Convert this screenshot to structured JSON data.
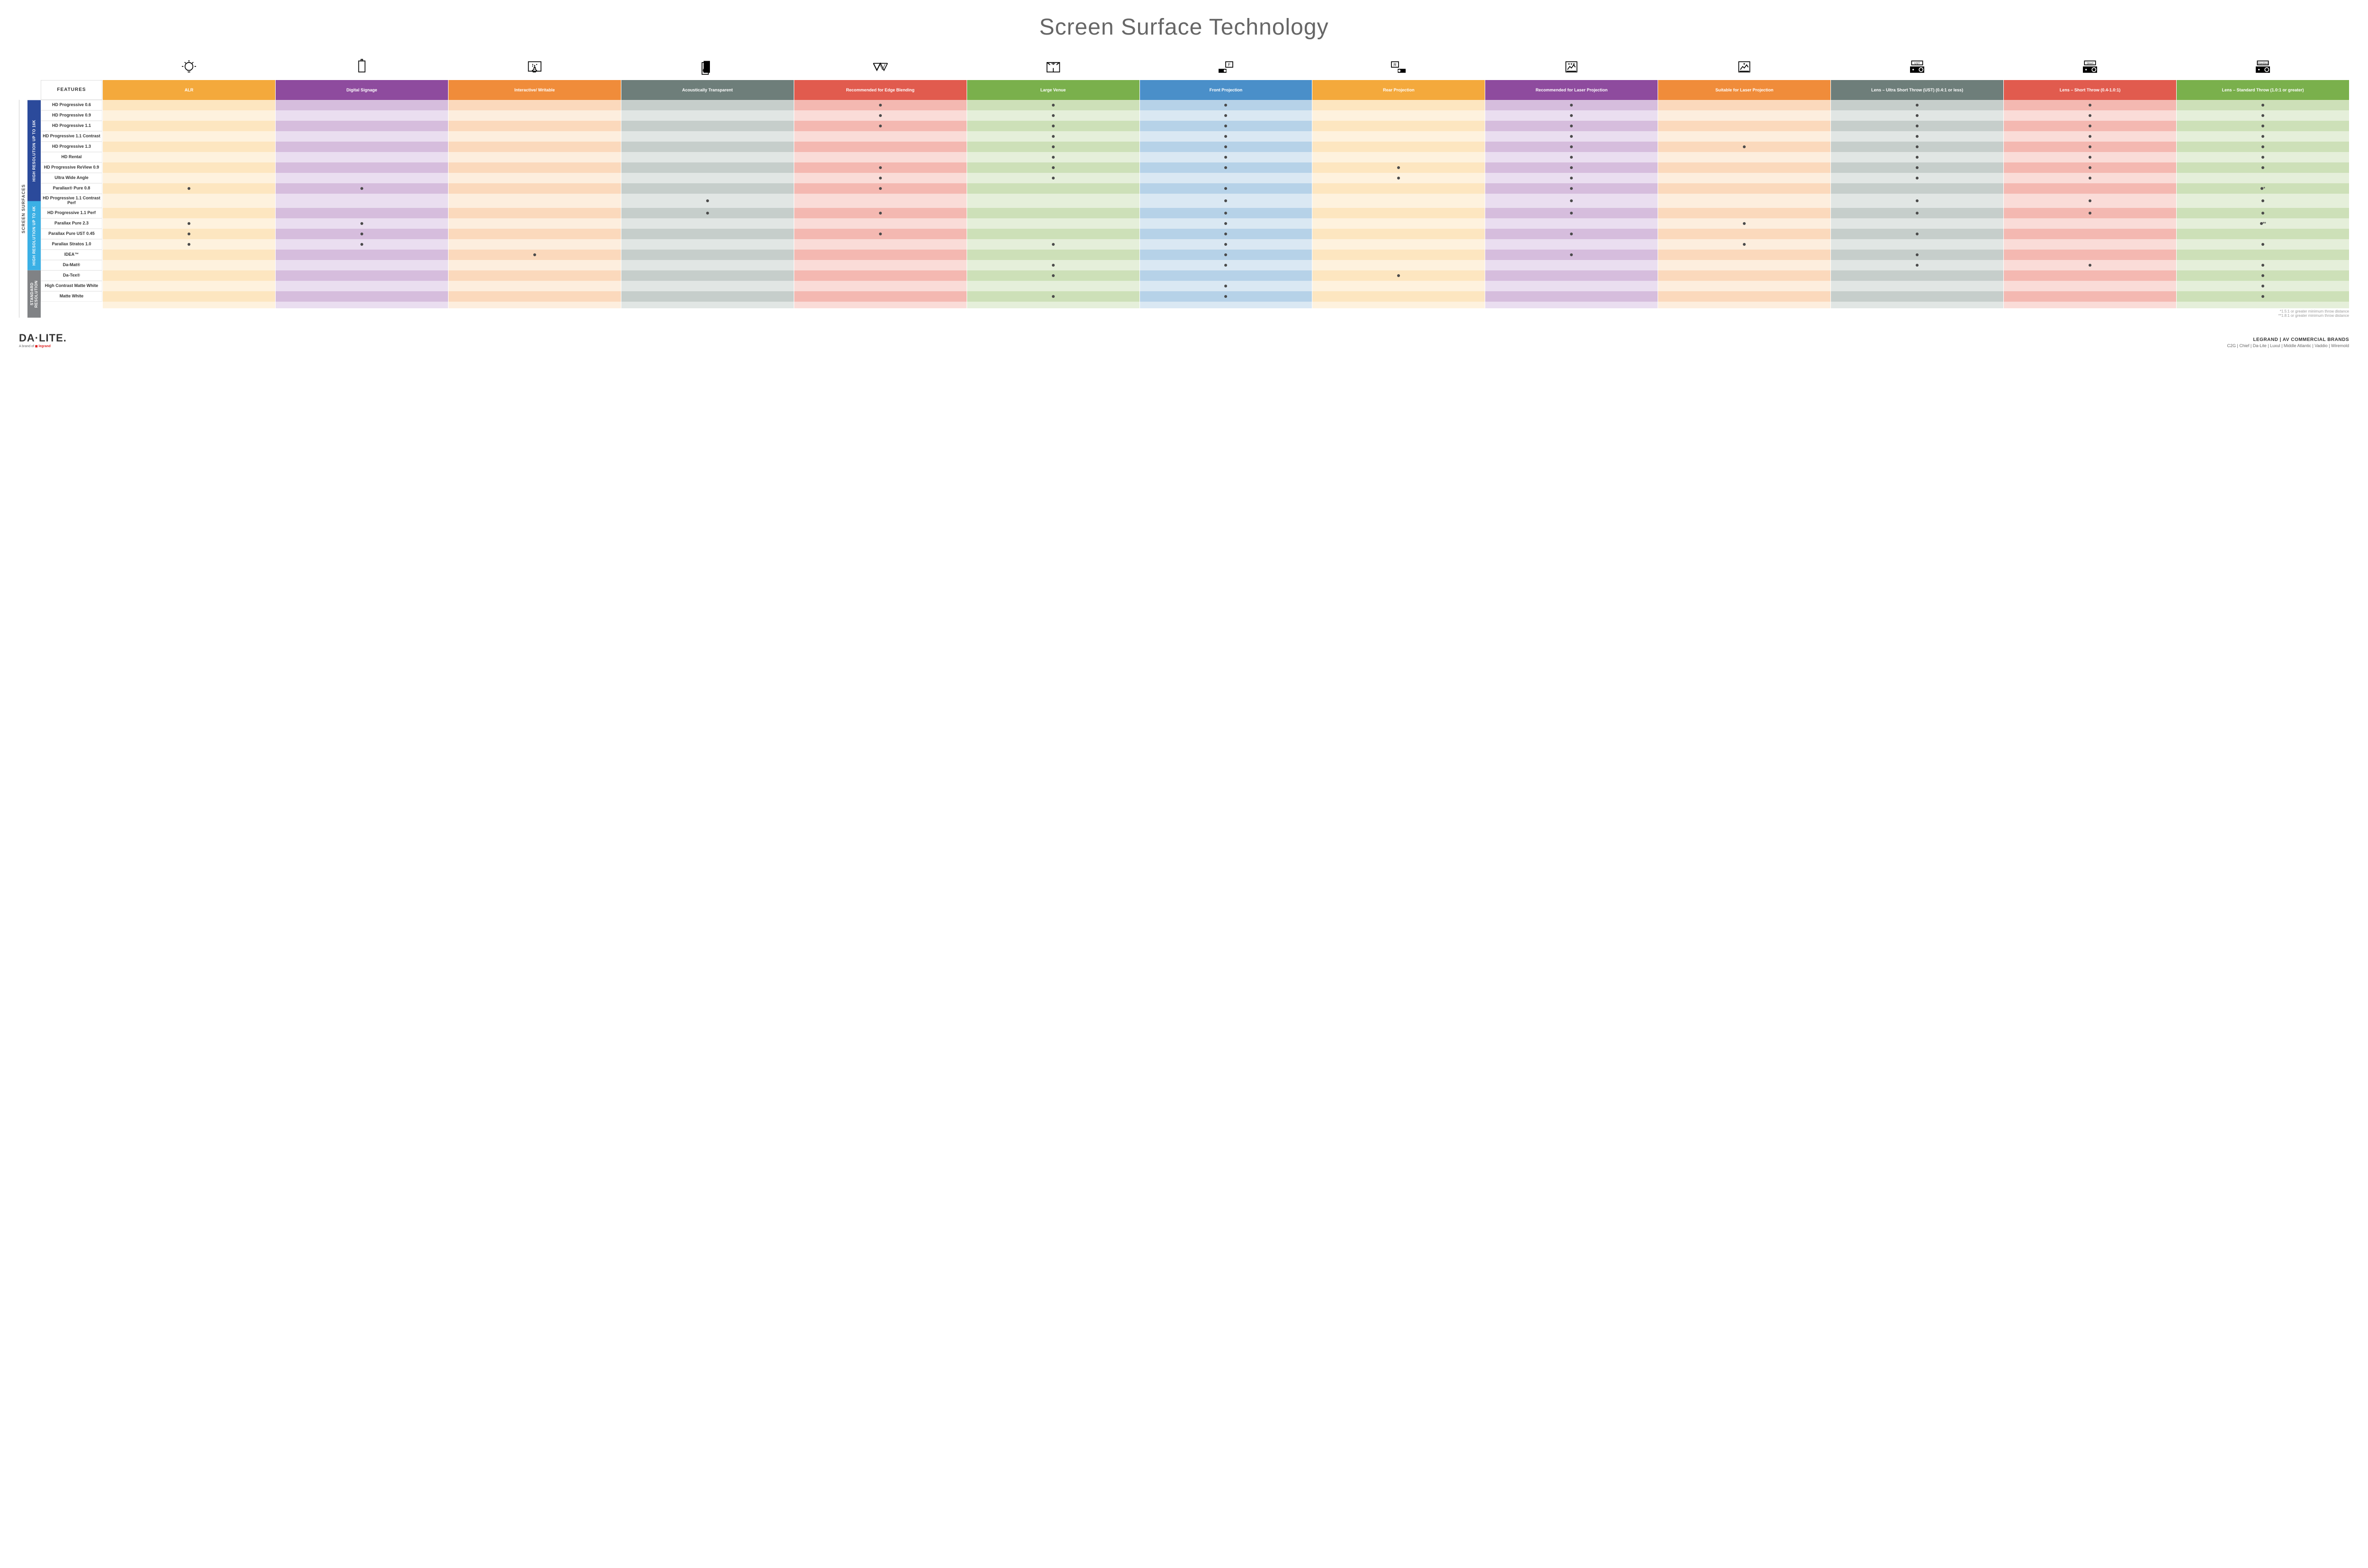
{
  "title": "Screen Surface Technology",
  "side_label": "SCREEN SURFACES",
  "groups": [
    {
      "label": "HIGH RESOLUTION UP TO 16K",
      "color": "#2b4a9b",
      "rows": 9
    },
    {
      "label": "HIGH RESOLUTION UP TO 4K",
      "color": "#3bb0e5",
      "rows": 6
    },
    {
      "label": "STANDARD RESOLUTION",
      "color": "#808285",
      "rows": 4
    }
  ],
  "columns": [
    {
      "key": "alr",
      "label": "ALR",
      "color": "#f4a93c",
      "light": "#fde6c0",
      "lighter": "#fef2de",
      "icon": "bulb"
    },
    {
      "key": "signage",
      "label": "Digital Signage",
      "color": "#8e4b9e",
      "light": "#d6bddd",
      "lighter": "#eadef0",
      "icon": "signage"
    },
    {
      "key": "writable",
      "label": "Interactive/ Writable",
      "color": "#f08c3a",
      "light": "#fbd9bc",
      "lighter": "#fdeede",
      "icon": "touch"
    },
    {
      "key": "acoustic",
      "label": "Acoustically Transparent",
      "color": "#6e7e7a",
      "light": "#c6cecb",
      "lighter": "#e1e6e4",
      "icon": "speaker"
    },
    {
      "key": "edge",
      "label": "Recommended for Edge Blending",
      "color": "#e15b4e",
      "light": "#f4b8b1",
      "lighter": "#fadcd8",
      "icon": "triangles"
    },
    {
      "key": "venue",
      "label": "Large Venue",
      "color": "#7ab04c",
      "light": "#cde0b8",
      "lighter": "#e5efda",
      "icon": "venue"
    },
    {
      "key": "front",
      "label": "Front Projection",
      "color": "#4a8fc9",
      "light": "#b6d2e8",
      "lighter": "#dae8f3",
      "icon": "frontproj"
    },
    {
      "key": "rear",
      "label": "Rear Projection",
      "color": "#f4a93c",
      "light": "#fde6c0",
      "lighter": "#fef2de",
      "icon": "rearproj"
    },
    {
      "key": "reclaser",
      "label": "Recommended for Laser Projection",
      "color": "#8e4b9e",
      "light": "#d6bddd",
      "lighter": "#eadef0",
      "icon": "laser3"
    },
    {
      "key": "suitlaser",
      "label": "Suitable for Laser Projection",
      "color": "#f08c3a",
      "light": "#fbd9bc",
      "lighter": "#fdeede",
      "icon": "laser1"
    },
    {
      "key": "ust",
      "label": "Lens – Ultra Short Throw (UST) (0.4:1 or less)",
      "color": "#6e7e7a",
      "light": "#c6cecb",
      "lighter": "#e1e6e4",
      "icon": "projUST"
    },
    {
      "key": "short",
      "label": "Lens – Short Throw (0.4-1.0:1)",
      "color": "#e15b4e",
      "light": "#f4b8b1",
      "lighter": "#fadcd8",
      "icon": "projShort"
    },
    {
      "key": "std",
      "label": "Lens – Standard Throw (1.0:1 or greater)",
      "color": "#7ab04c",
      "light": "#cde0b8",
      "lighter": "#e5efda",
      "icon": "projStd"
    }
  ],
  "features_label": "FEATURES",
  "rows": [
    {
      "label": "HD Progressive 0.6",
      "dots": {
        "edge": "•",
        "venue": "•",
        "front": "•",
        "reclaser": "•",
        "ust": "•",
        "short": "•",
        "std": "•"
      }
    },
    {
      "label": "HD Progressive 0.9",
      "dots": {
        "edge": "•",
        "venue": "•",
        "front": "•",
        "reclaser": "•",
        "ust": "•",
        "short": "•",
        "std": "•"
      }
    },
    {
      "label": "HD Progressive 1.1",
      "dots": {
        "edge": "•",
        "venue": "•",
        "front": "•",
        "reclaser": "•",
        "ust": "•",
        "short": "•",
        "std": "•"
      }
    },
    {
      "label": "HD Progressive 1.1 Contrast",
      "dots": {
        "venue": "•",
        "front": "•",
        "reclaser": "•",
        "ust": "•",
        "short": "•",
        "std": "•"
      }
    },
    {
      "label": "HD Progressive 1.3",
      "dots": {
        "venue": "•",
        "front": "•",
        "reclaser": "•",
        "suitlaser": "•",
        "ust": "•",
        "short": "•",
        "std": "•"
      }
    },
    {
      "label": "HD Rental",
      "dots": {
        "venue": "•",
        "front": "•",
        "reclaser": "•",
        "ust": "•",
        "short": "•",
        "std": "•"
      }
    },
    {
      "label": "HD Progressive ReView 0.9",
      "dots": {
        "edge": "•",
        "venue": "•",
        "front": "•",
        "rear": "•",
        "reclaser": "•",
        "ust": "•",
        "short": "•",
        "std": "•"
      }
    },
    {
      "label": "Ultra Wide Angle",
      "dots": {
        "edge": "•",
        "venue": "•",
        "rear": "•",
        "reclaser": "•",
        "ust": "•",
        "short": "•"
      }
    },
    {
      "label": "Parallax® Pure 0.8",
      "dots": {
        "alr": "•",
        "signage": "•",
        "edge": "•",
        "front": "•",
        "reclaser": "•",
        "std": "•*"
      }
    },
    {
      "label": "HD Progressive 1.1 Contrast Perf",
      "dots": {
        "acoustic": "•",
        "front": "•",
        "reclaser": "•",
        "ust": "•",
        "short": "•",
        "std": "•"
      }
    },
    {
      "label": "HD Progressive 1.1 Perf",
      "dots": {
        "acoustic": "•",
        "edge": "•",
        "front": "•",
        "reclaser": "•",
        "ust": "•",
        "short": "•",
        "std": "•"
      }
    },
    {
      "label": "Parallax Pure 2.3",
      "dots": {
        "alr": "•",
        "signage": "•",
        "front": "•",
        "suitlaser": "•",
        "std": "•**"
      }
    },
    {
      "label": "Parallax Pure UST 0.45",
      "dots": {
        "alr": "•",
        "signage": "•",
        "edge": "•",
        "front": "•",
        "reclaser": "•",
        "ust": "•"
      }
    },
    {
      "label": "Parallax Stratos 1.0",
      "dots": {
        "alr": "•",
        "signage": "•",
        "venue": "•",
        "front": "•",
        "suitlaser": "•",
        "std": "•"
      }
    },
    {
      "label": "IDEA™",
      "dots": {
        "writable": "•",
        "front": "•",
        "reclaser": "•",
        "ust": "•"
      }
    },
    {
      "label": "Da-Mat®",
      "dots": {
        "venue": "•",
        "front": "•",
        "ust": "•",
        "short": "•",
        "std": "•"
      }
    },
    {
      "label": "Da-Tex®",
      "dots": {
        "venue": "•",
        "rear": "•",
        "std": "•"
      }
    },
    {
      "label": "High Contrast Matte White",
      "dots": {
        "front": "•",
        "std": "•"
      }
    },
    {
      "label": "Matte White",
      "dots": {
        "venue": "•",
        "front": "•",
        "std": "•"
      }
    }
  ],
  "footnotes": [
    "*1.5:1 or greater minimum throw distance",
    "**1.8:1 or greater minimum throw distance"
  ],
  "footer": {
    "logo": "DA·LITE.",
    "logo_sub_prefix": "A brand of ",
    "logo_sub_brand": "legrand",
    "brands_title": "LEGRAND | AV COMMERCIAL BRANDS",
    "brands_list": "C2G  |  Chief  |  Da-Lite  |  Luxul  |  Middle Atlantic  |  Vaddio  |  Wiremold"
  }
}
